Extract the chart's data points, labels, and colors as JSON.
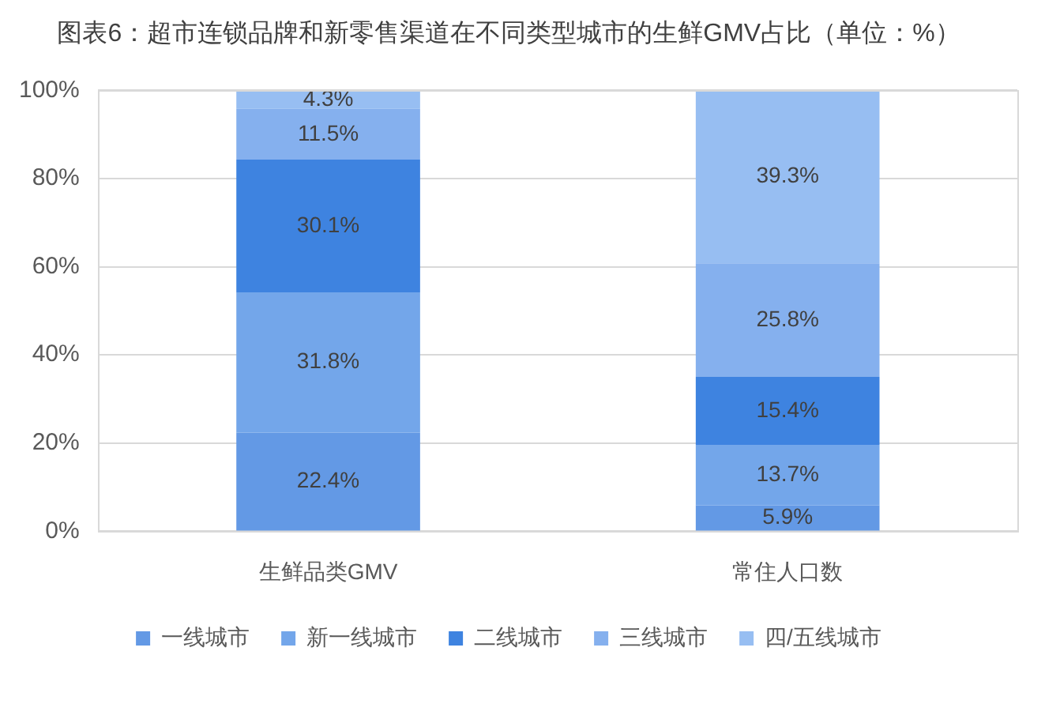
{
  "chart_data": {
    "type": "bar",
    "title": "图表6：超市连锁品牌和新零售渠道在不同类型城市的生鲜GMV占比（单位：%）",
    "categories": [
      "生鲜品类GMV",
      "常住人口数"
    ],
    "series": [
      {
        "name": "一线城市",
        "color": "#6399e5",
        "values": [
          22.4,
          5.9
        ],
        "value_labels": [
          "22.4%",
          "5.9%"
        ]
      },
      {
        "name": "新一线城市",
        "color": "#73a6ea",
        "values": [
          31.8,
          13.7
        ],
        "value_labels": [
          "31.8%",
          "13.7%"
        ]
      },
      {
        "name": "二线城市",
        "color": "#3e83e0",
        "values": [
          30.1,
          15.4
        ],
        "value_labels": [
          "30.1%",
          "15.4%"
        ]
      },
      {
        "name": "三线城市",
        "color": "#85b0ee",
        "values": [
          11.5,
          25.8
        ],
        "value_labels": [
          "11.5%",
          "25.8%"
        ]
      },
      {
        "name": "四/五线城市",
        "color": "#97bef2",
        "values": [
          4.3,
          39.3
        ],
        "value_labels": [
          "4.3%",
          "39.3%"
        ]
      }
    ],
    "stacked": true,
    "ylim": [
      0,
      100
    ],
    "yticks": [
      {
        "value": 0,
        "label": "0%"
      },
      {
        "value": 20,
        "label": "20%"
      },
      {
        "value": 40,
        "label": "40%"
      },
      {
        "value": 60,
        "label": "60%"
      },
      {
        "value": 80,
        "label": "80%"
      },
      {
        "value": 100,
        "label": "100%"
      }
    ],
    "grid": "y",
    "legend": "bottom"
  }
}
